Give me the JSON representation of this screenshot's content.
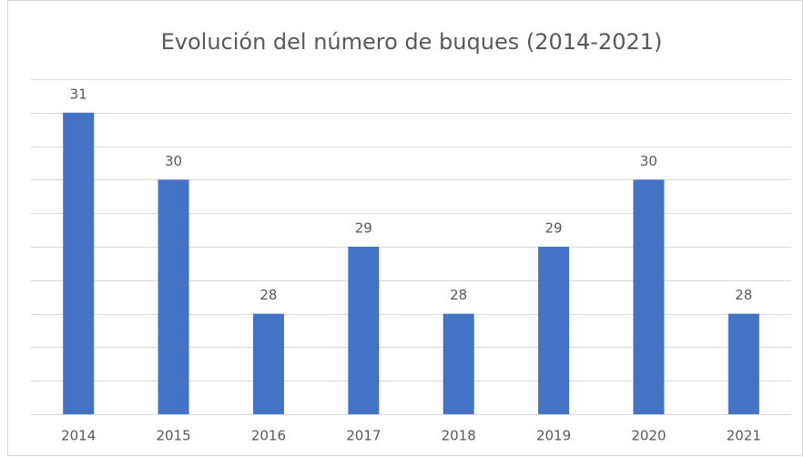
{
  "chart_data": {
    "type": "bar",
    "title": "Evolución del número de buques (2014-2021)",
    "categories": [
      "2014",
      "2015",
      "2016",
      "2017",
      "2018",
      "2019",
      "2020",
      "2021"
    ],
    "values": [
      31,
      30,
      28,
      29,
      28,
      29,
      30,
      28
    ],
    "color": "#4472c4",
    "ylim": [
      26.5,
      31.5
    ],
    "yticks": [
      26.5,
      27,
      27.5,
      28,
      28.5,
      29,
      29.5,
      30,
      30.5,
      31,
      31.5
    ],
    "grid": true
  }
}
